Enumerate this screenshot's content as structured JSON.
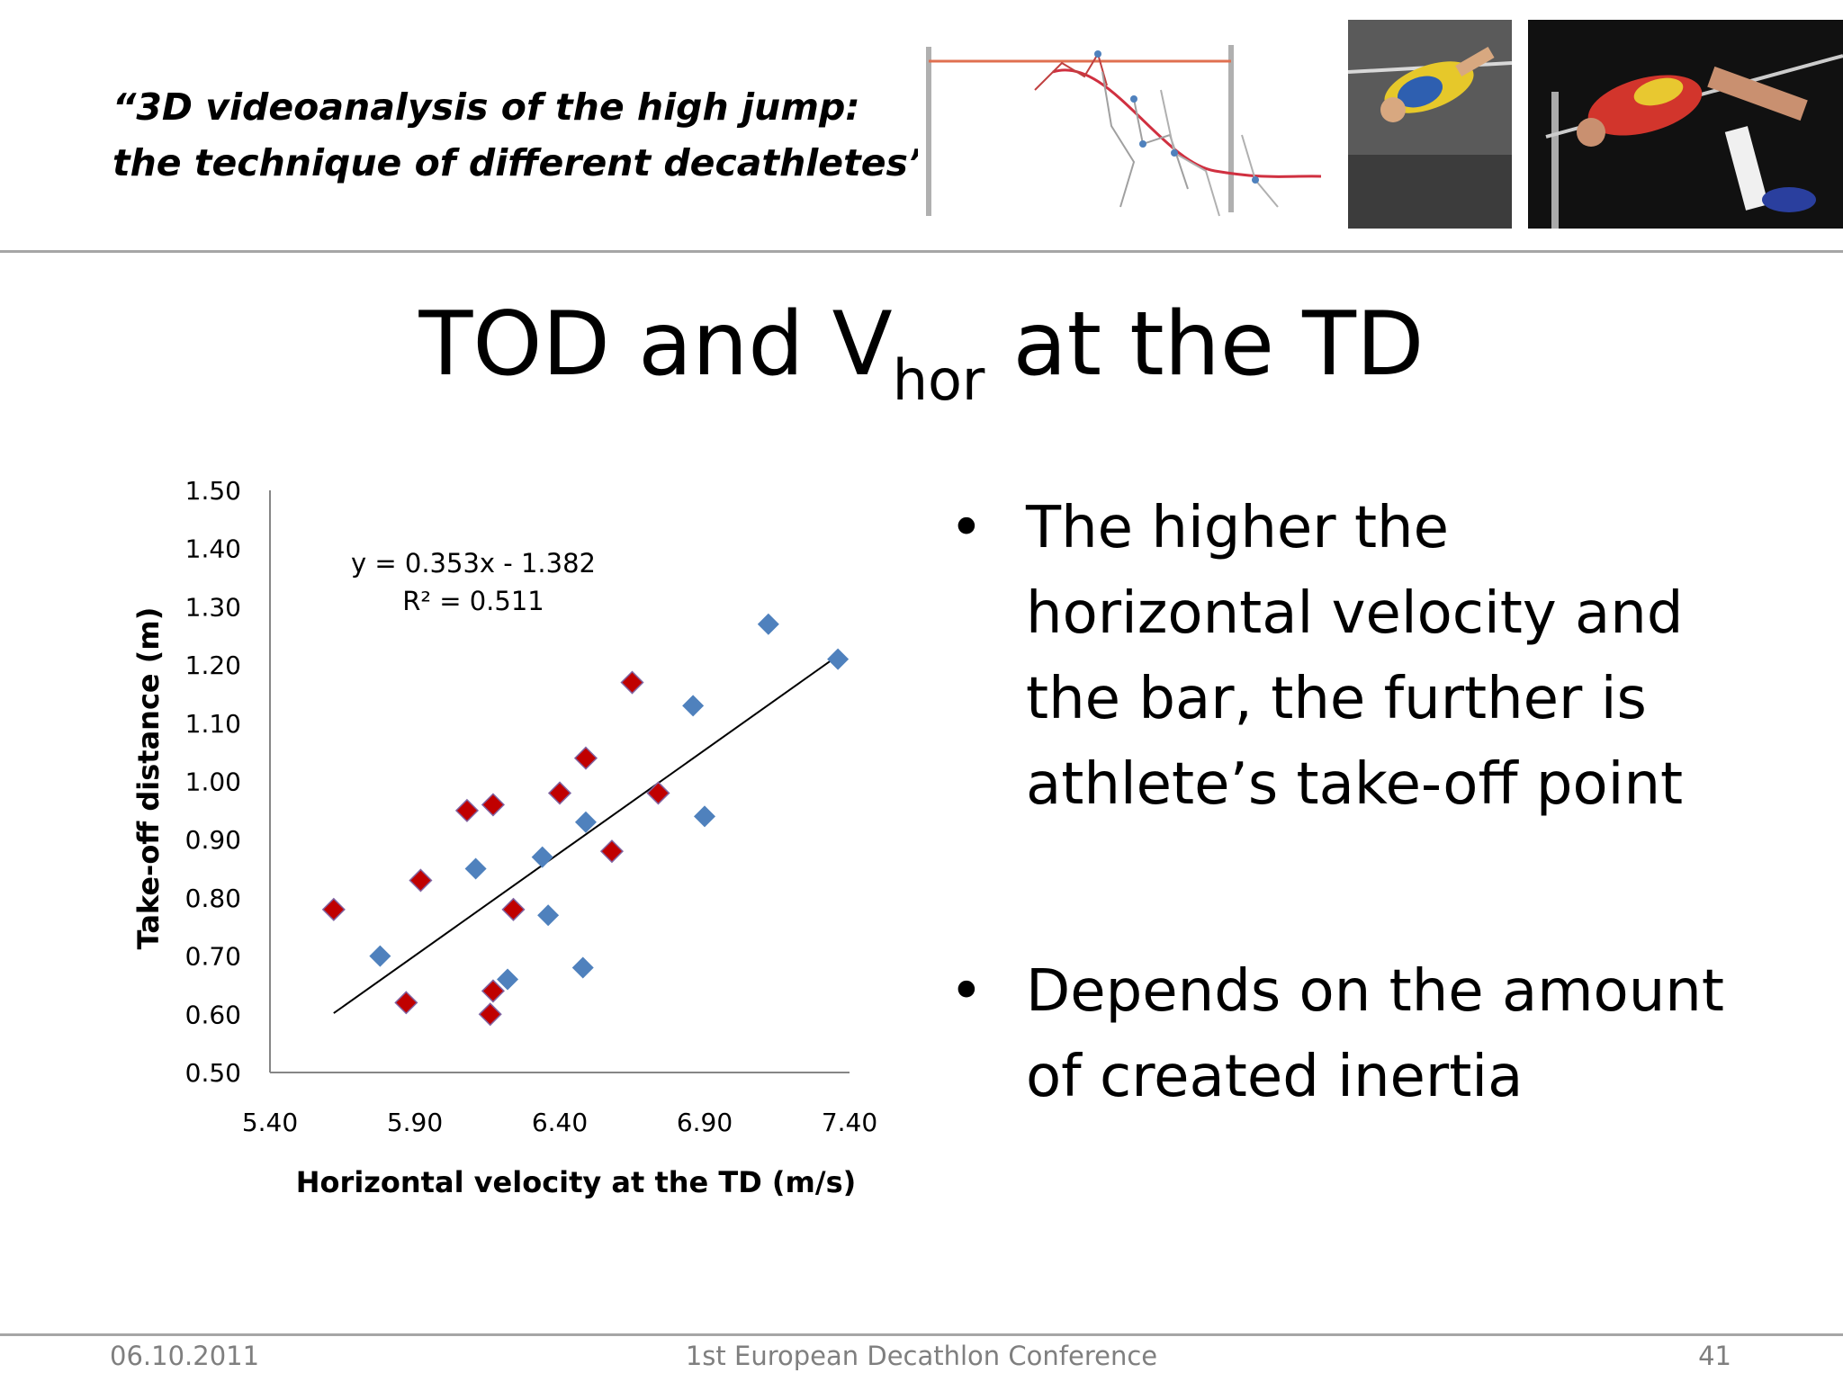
{
  "header": {
    "quote_line1": "“3D videoanalysis of the high jump:",
    "quote_line2": "the technique of different decathletes”"
  },
  "images": [
    {
      "name": "high-jump-stick-figure-diagram"
    },
    {
      "name": "athlete-photo-yellow-blue"
    },
    {
      "name": "athlete-photo-red"
    }
  ],
  "title": {
    "main": "TOD and V",
    "sub": "hor",
    "tail": " at the TD"
  },
  "bullets": [
    {
      "symbol": "•",
      "lines": [
        "The higher the",
        "horizontal velocity and",
        "the bar, the further is",
        "athlete’s take-off point"
      ]
    },
    {
      "symbol": "•",
      "lines": [
        "Depends on the amount",
        "of created inertia"
      ]
    }
  ],
  "footer": {
    "date": "06.10.2011",
    "conference": "1st European Decathlon Conference",
    "page": "41"
  },
  "chart_data": {
    "type": "scatter",
    "xlabel": "Horizontal velocity at the TD (m/s)",
    "ylabel": "Take-off distance (m)",
    "xlim": [
      5.4,
      7.4
    ],
    "ylim": [
      0.5,
      1.5
    ],
    "x_ticks": [
      "5.40",
      "5.90",
      "6.40",
      "6.90",
      "7.40"
    ],
    "y_ticks": [
      "0.50",
      "0.60",
      "0.70",
      "0.80",
      "0.90",
      "1.00",
      "1.10",
      "1.20",
      "1.30",
      "1.40",
      "1.50"
    ],
    "grid": false,
    "series": [
      {
        "color": "#4f81bd",
        "marker": "diamond",
        "points": [
          [
            5.78,
            0.7
          ],
          [
            6.11,
            0.85
          ],
          [
            6.22,
            0.66
          ],
          [
            6.34,
            0.87
          ],
          [
            6.36,
            0.77
          ],
          [
            6.48,
            0.68
          ],
          [
            6.49,
            0.93
          ],
          [
            6.86,
            1.13
          ],
          [
            6.9,
            0.94
          ],
          [
            7.12,
            1.27
          ],
          [
            7.36,
            1.21
          ]
        ]
      },
      {
        "color": "#c00000",
        "marker": "diamond",
        "points": [
          [
            5.62,
            0.78
          ],
          [
            5.87,
            0.62
          ],
          [
            5.92,
            0.83
          ],
          [
            6.08,
            0.95
          ],
          [
            6.16,
            0.6
          ],
          [
            6.17,
            0.64
          ],
          [
            6.17,
            0.96
          ],
          [
            6.24,
            0.78
          ],
          [
            6.4,
            0.98
          ],
          [
            6.49,
            1.04
          ],
          [
            6.58,
            0.88
          ],
          [
            6.65,
            1.17
          ],
          [
            6.74,
            0.98
          ]
        ]
      }
    ],
    "trendline": {
      "slope": 0.353,
      "intercept": -1.382,
      "x_range": [
        5.62,
        7.36
      ]
    },
    "annotations": [
      "y = 0.353x - 1.382",
      "R² = 0.511"
    ]
  }
}
